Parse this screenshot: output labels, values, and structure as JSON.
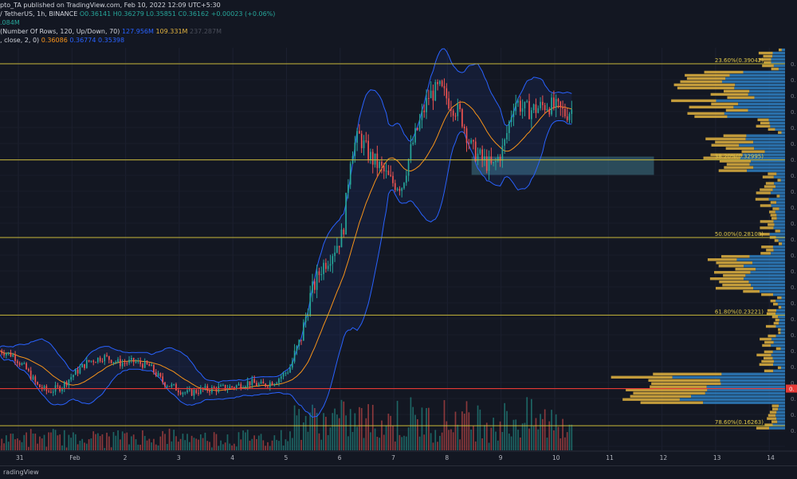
{
  "header": {
    "line1": "pto_TA published on TradingView.com, Feb 10, 2022 12:09 UTC+5:30",
    "line2_symbol": "/ TetherUS, 1h, BINANCE",
    "line2_ohlc": "O0.36141 H0.36279 L0.35851 C0.36162 +0.00023 (+0.06%)",
    "line3": ".084M",
    "line4_label": "(Number Of Rows, 120, Up/Down, 70)",
    "line4_v1": "127.956M",
    "line4_v2": "109.331M",
    "line4_v3": "237.287M",
    "line5_label": ", close, 2, 0)",
    "line5_v1": "0.36086",
    "line5_v2": "0.36774",
    "line5_v3": "0.35398"
  },
  "footer": {
    "brand": "radingView"
  },
  "colors": {
    "background": "#131722",
    "fib": "#c8b93a",
    "fib_label": "#e2c94a",
    "red_line": "#e53935",
    "bb": "#2962ff",
    "basis": "#f7931a",
    "up": "#26a69a",
    "down": "#ef5350",
    "vp_up": "#2f7fc1",
    "vp_down": "#e2b340",
    "zone": "#4a8ca0"
  },
  "chart_data": {
    "type": "candlestick",
    "x_ticks": [
      "31",
      "Feb",
      "2",
      "3",
      "4",
      "5",
      "6",
      "7",
      "8",
      "9",
      "10",
      "11",
      "12",
      "13",
      "14"
    ],
    "y_range": [
      0.1,
      0.45
    ],
    "fib_levels": [
      {
        "label": "23.60%(0.39042)",
        "value": 0.39042
      },
      {
        "label": "38.20%(0.32995)",
        "value": 0.32995
      },
      {
        "label": "50.00%(0.28108)",
        "value": 0.28108
      },
      {
        "label": "61.80%(0.23221)",
        "value": 0.23221
      },
      {
        "label": "78.60%(0.16263)",
        "value": 0.16263
      }
    ],
    "red_level": {
      "value": 0.186,
      "label": "0."
    },
    "current_price": 0.36162,
    "zone": {
      "from_day": 8.45,
      "to_day": 11.85,
      "high": 0.332,
      "low": 0.3205
    },
    "price_path": [
      [
        -0.35,
        0.21
      ],
      [
        -0.1,
        0.207
      ],
      [
        0.15,
        0.198
      ],
      [
        0.35,
        0.188
      ],
      [
        0.55,
        0.184
      ],
      [
        0.8,
        0.187
      ],
      [
        1.0,
        0.194
      ],
      [
        1.3,
        0.203
      ],
      [
        1.6,
        0.206
      ],
      [
        1.9,
        0.202
      ],
      [
        2.15,
        0.203
      ],
      [
        2.45,
        0.2
      ],
      [
        2.7,
        0.19
      ],
      [
        2.95,
        0.186
      ],
      [
        3.15,
        0.183
      ],
      [
        3.4,
        0.185
      ],
      [
        3.7,
        0.186
      ],
      [
        4.0,
        0.187
      ],
      [
        4.3,
        0.19
      ],
      [
        4.55,
        0.188
      ],
      [
        4.8,
        0.191
      ],
      [
        5.05,
        0.198
      ],
      [
        5.25,
        0.215
      ],
      [
        5.45,
        0.245
      ],
      [
        5.65,
        0.262
      ],
      [
        5.85,
        0.272
      ],
      [
        6.05,
        0.283
      ],
      [
        6.2,
        0.335
      ],
      [
        6.35,
        0.345
      ],
      [
        6.55,
        0.332
      ],
      [
        6.75,
        0.325
      ],
      [
        6.95,
        0.316
      ],
      [
        7.15,
        0.314
      ],
      [
        7.35,
        0.34
      ],
      [
        7.5,
        0.355
      ],
      [
        7.65,
        0.37
      ],
      [
        7.85,
        0.375
      ],
      [
        8.05,
        0.366
      ],
      [
        8.25,
        0.358
      ],
      [
        8.45,
        0.337
      ],
      [
        8.65,
        0.33
      ],
      [
        8.85,
        0.325
      ],
      [
        9.05,
        0.338
      ],
      [
        9.25,
        0.368
      ],
      [
        9.45,
        0.361
      ],
      [
        9.65,
        0.362
      ],
      [
        9.85,
        0.365
      ],
      [
        10.05,
        0.362
      ],
      [
        10.2,
        0.359
      ],
      [
        10.32,
        0.3616
      ]
    ],
    "volume_scale_max": 1.0
  }
}
